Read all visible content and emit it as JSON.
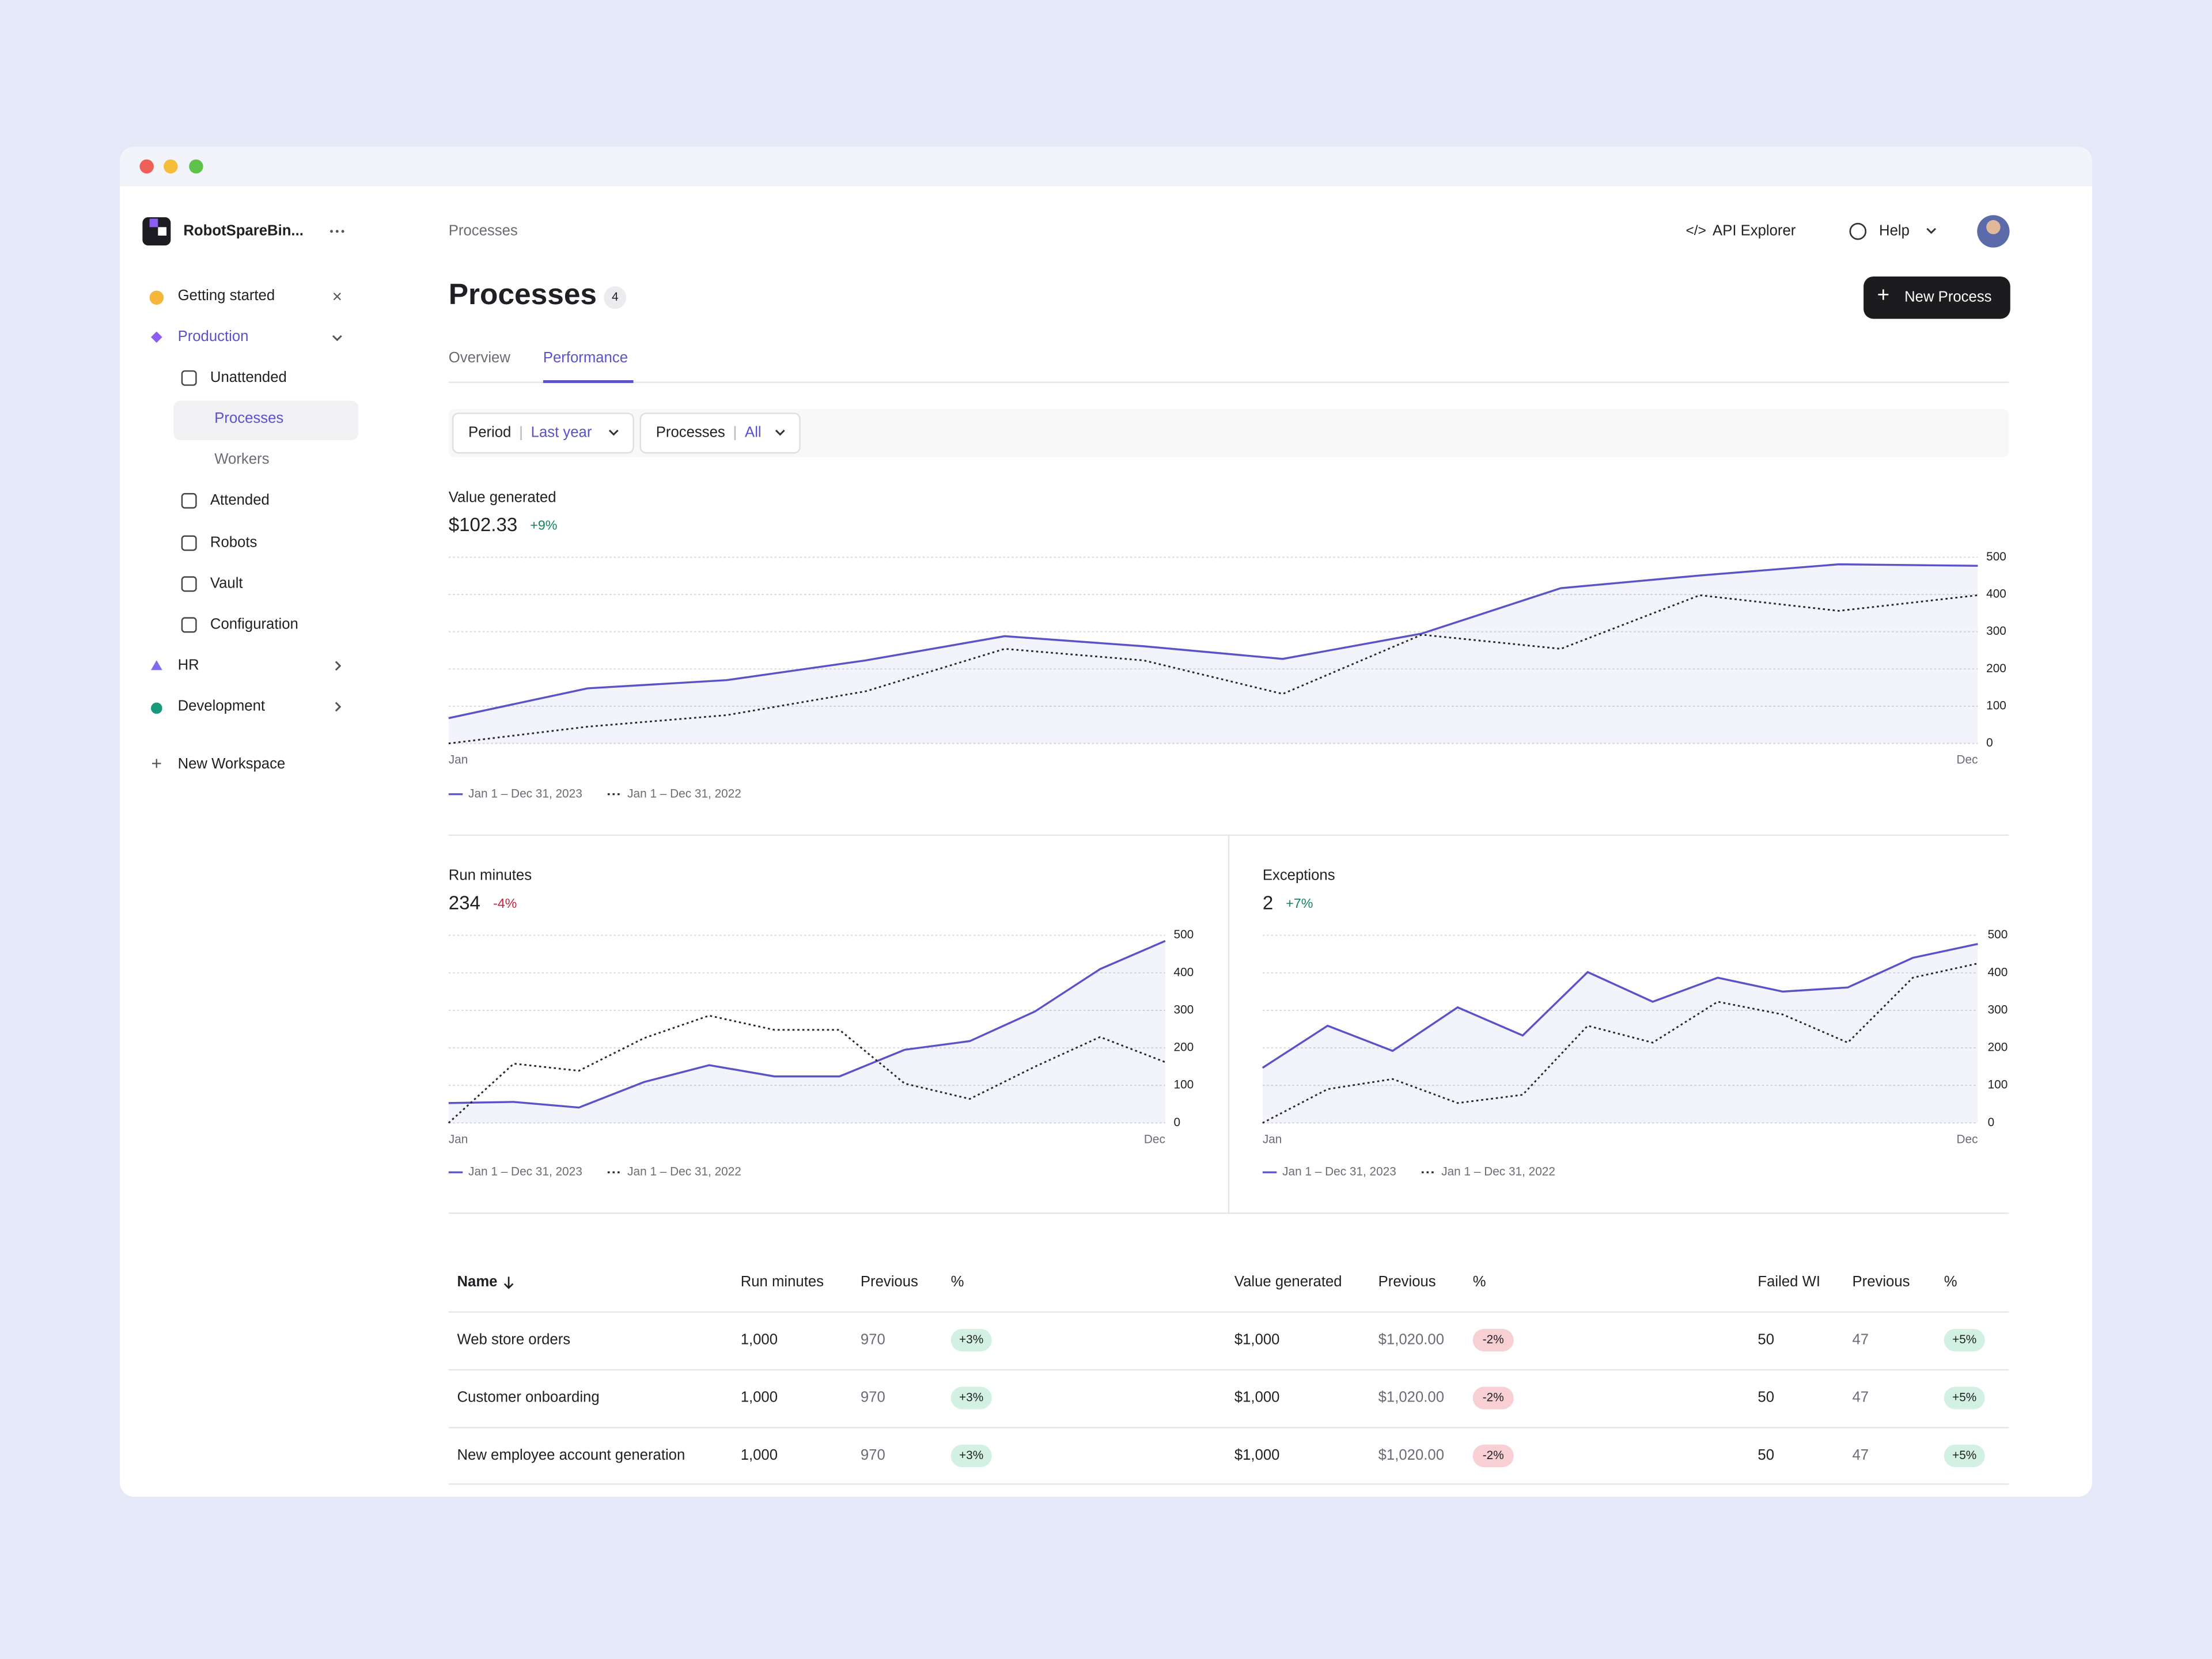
{
  "sidebar": {
    "workspace": "RobotSpareBin...",
    "items": [
      "Getting started",
      "Production",
      "Unattended",
      "Processes",
      "Workers",
      "Attended",
      "Robots",
      "Vault",
      "Configuration",
      "HR",
      "Development",
      "New Workspace"
    ]
  },
  "header": {
    "breadcrumb": "Processes",
    "api": "API Explorer",
    "help": "Help",
    "title": "Processes",
    "count": 4,
    "new_button": "New Process"
  },
  "tabs": [
    "Overview",
    "Performance"
  ],
  "filters": [
    {
      "label": "Period",
      "value": "Last year"
    },
    {
      "label": "Processes",
      "value": "All"
    }
  ],
  "charts": [
    {
      "type": "line",
      "title": "Value generated",
      "value": "$102.33",
      "change": "+9%",
      "categories": [
        "Jan",
        null,
        null,
        null,
        null,
        null,
        null,
        null,
        null,
        null,
        null,
        "Dec"
      ],
      "ylim": [
        0,
        500
      ],
      "yticks": [
        0,
        100,
        200,
        300,
        400,
        500
      ],
      "series": [
        {
          "name": "Jan 1 – Dec 31, 2023",
          "color": "#5a52c9",
          "values": [
            68,
            148,
            170,
            223,
            288,
            261,
            227,
            295,
            417,
            451,
            481,
            477
          ]
        },
        {
          "name": "Jan 1 – Dec 31, 2022",
          "color": "#26262b",
          "values": [
            0,
            45,
            76,
            140,
            254,
            223,
            133,
            292,
            254,
            398,
            356,
            398
          ]
        }
      ]
    },
    {
      "type": "line",
      "title": "Run minutes",
      "value": "234",
      "change": "-4%",
      "categories": [
        "Jan",
        null,
        null,
        null,
        null,
        null,
        null,
        null,
        null,
        null,
        null,
        "Dec"
      ],
      "ylim": [
        0,
        500
      ],
      "yticks": [
        0,
        100,
        200,
        300,
        400,
        500
      ],
      "series": [
        {
          "name": "Jan 1 – Dec 31, 2023",
          "color": "#5a52c9",
          "values": [
            53,
            56,
            41,
            109,
            154,
            124,
            124,
            195,
            218,
            297,
            410,
            485
          ]
        },
        {
          "name": "Jan 1 – Dec 31, 2022",
          "color": "#26262b",
          "values": [
            0,
            158,
            139,
            226,
            286,
            248,
            248,
            105,
            64,
            150,
            229,
            162
          ]
        }
      ]
    },
    {
      "type": "line",
      "title": "Exceptions",
      "value": "2",
      "change": "+7%",
      "categories": [
        "Jan",
        null,
        null,
        null,
        null,
        null,
        null,
        null,
        null,
        null,
        null,
        "Dec"
      ],
      "ylim": [
        0,
        500
      ],
      "yticks": [
        0,
        100,
        200,
        300,
        400,
        500
      ],
      "series": [
        {
          "name": "Jan 1 – Dec 31, 2023",
          "color": "#5a52c9",
          "values": [
            147,
            259,
            192,
            308,
            233,
            402,
            323,
            387,
            350,
            361,
            440,
            477
          ]
        },
        {
          "name": "Jan 1 – Dec 31, 2022",
          "color": "#26262b",
          "values": [
            0,
            90,
            117,
            53,
            75,
            259,
            214,
            323,
            289,
            214,
            387,
            425
          ]
        }
      ]
    }
  ],
  "table": {
    "columns": [
      "Name",
      "Run minutes",
      "Previous",
      "%",
      "Value generated",
      "Previous",
      "%",
      "Failed WI",
      "Previous",
      "%"
    ],
    "rows": [
      [
        "Web store orders",
        "1,000",
        "970",
        "+3%",
        "$1,000",
        "$1,020.00",
        "-2%",
        "50",
        "47",
        "+5%"
      ],
      [
        "Customer onboarding",
        "1,000",
        "970",
        "+3%",
        "$1,000",
        "$1,020.00",
        "-2%",
        "50",
        "47",
        "+5%"
      ],
      [
        "New employee account generation",
        "1,000",
        "970",
        "+3%",
        "$1,000",
        "$1,020.00",
        "-2%",
        "50",
        "47",
        "+5%"
      ]
    ]
  }
}
